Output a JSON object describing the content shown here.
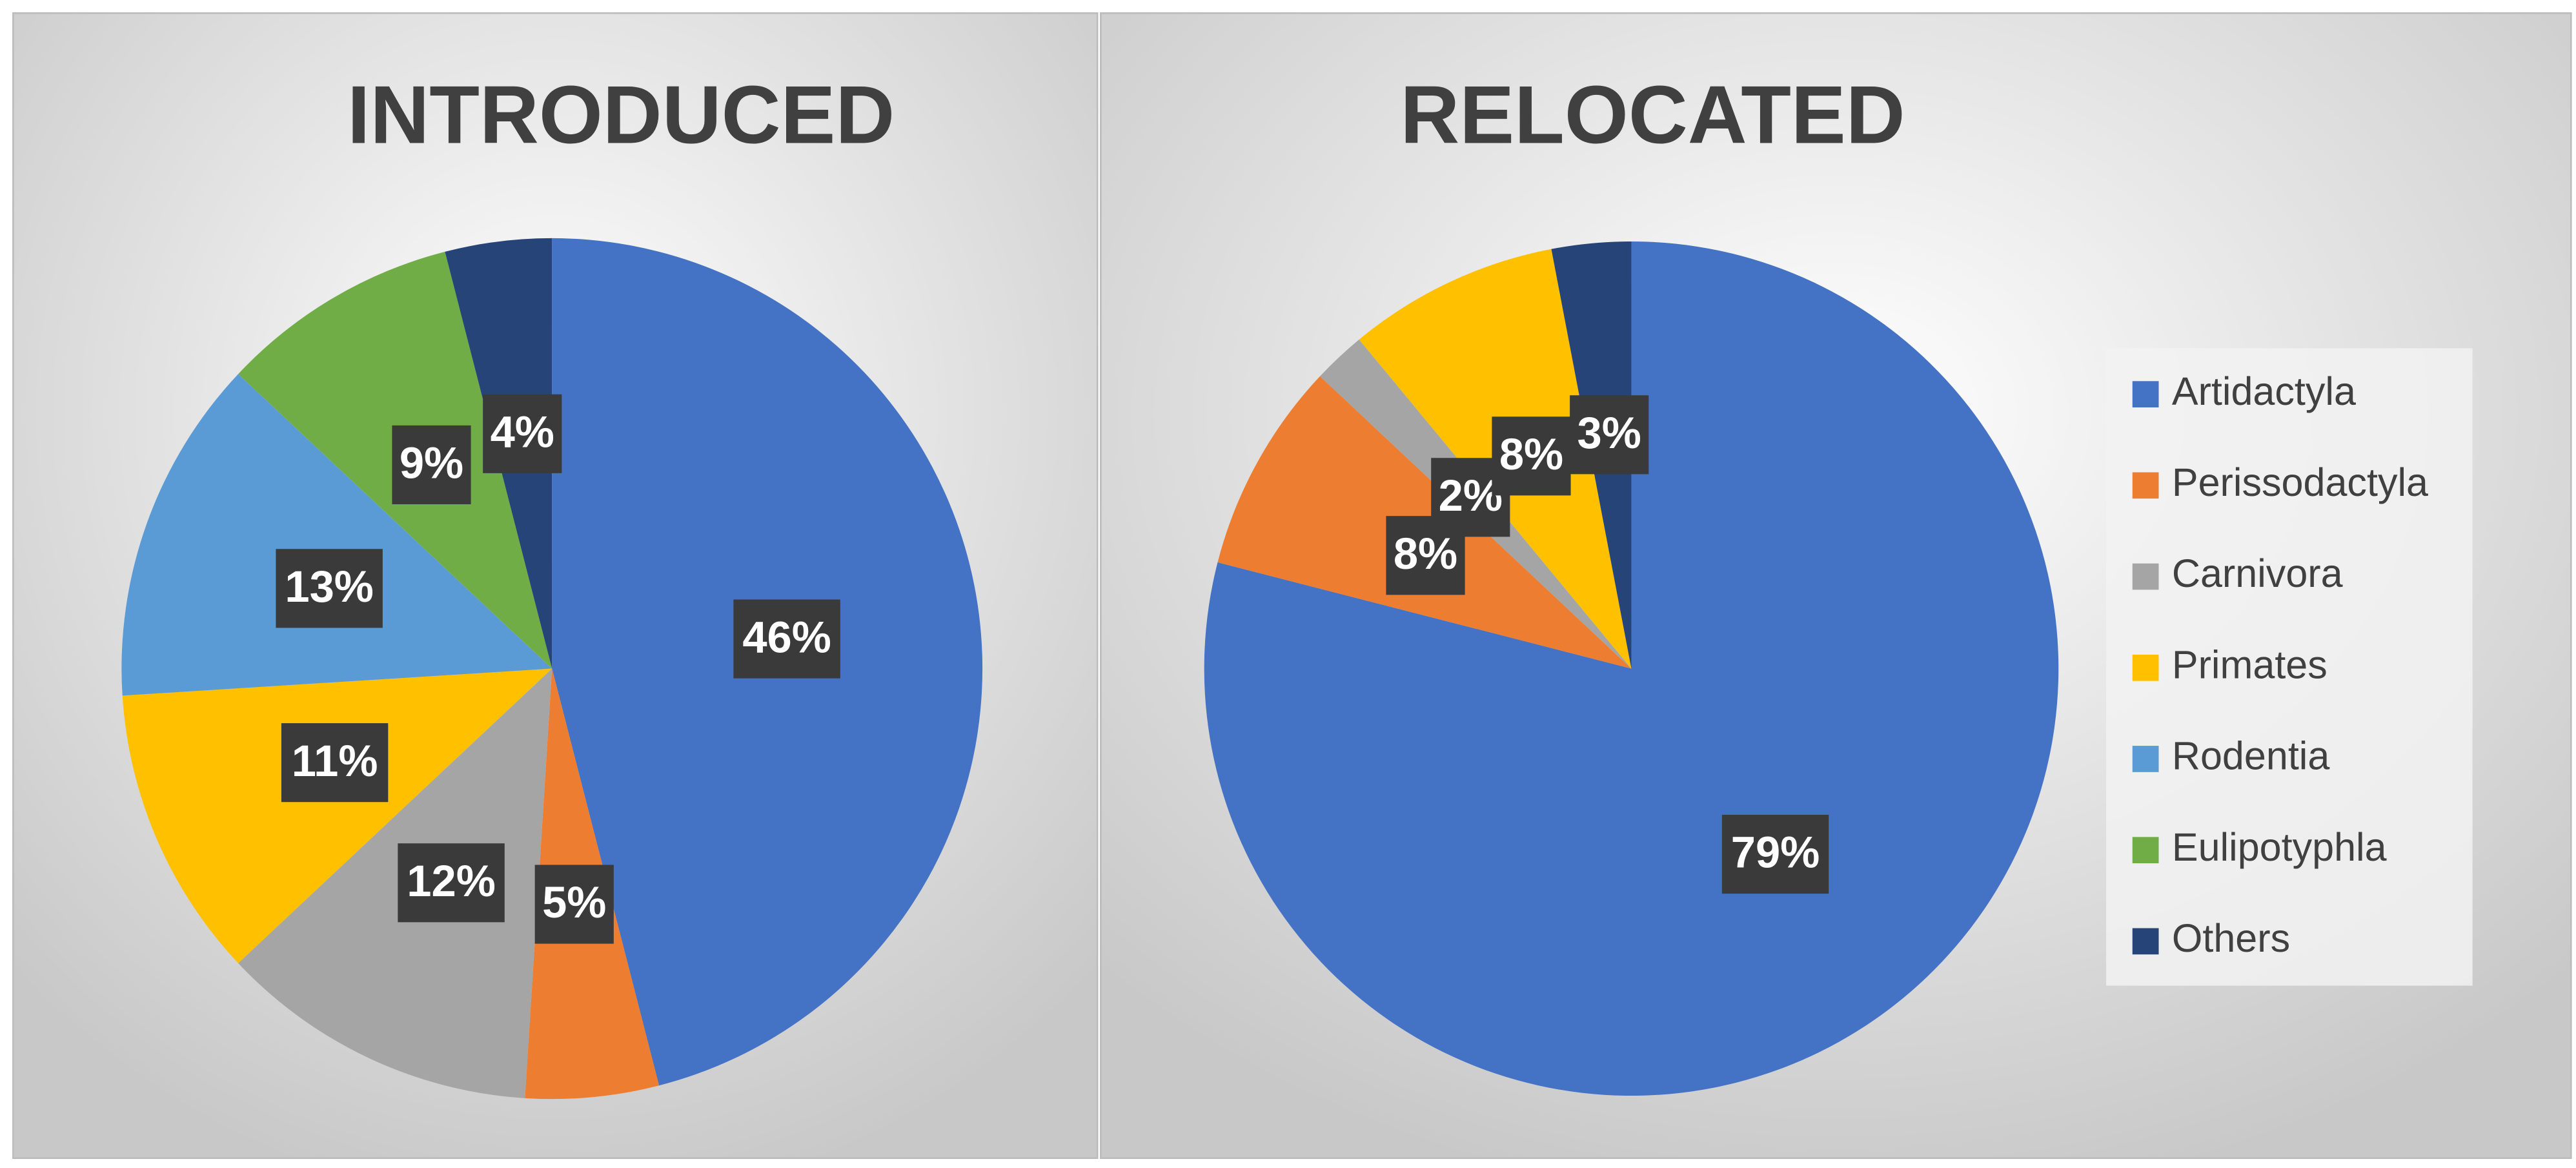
{
  "chart_data": [
    {
      "type": "pie",
      "title": "INTRODUCED",
      "categories": [
        "Artidactyla",
        "Perissodactyla",
        "Carnivora",
        "Primates",
        "Rodentia",
        "Eulipotyphla",
        "Others"
      ],
      "values": [
        46,
        5,
        12,
        11,
        13,
        9,
        4
      ],
      "value_labels": [
        "46%",
        "5%",
        "12%",
        "11%",
        "13%",
        "9%",
        "4%"
      ],
      "colors": [
        "#4472c4",
        "#ed7d31",
        "#a5a5a5",
        "#ffc000",
        "#5b9bd5",
        "#70ad47",
        "#264478"
      ]
    },
    {
      "type": "pie",
      "title": "RELOCATED",
      "categories": [
        "Artidactyla",
        "Perissodactyla",
        "Carnivora",
        "Primates",
        "Rodentia",
        "Eulipotyphla",
        "Others"
      ],
      "values": [
        79,
        8,
        2,
        8,
        0,
        0,
        3
      ],
      "value_labels": [
        "79%",
        "8%",
        "2%",
        "8%",
        null,
        null,
        "3%"
      ],
      "colors": [
        "#4472c4",
        "#ed7d31",
        "#a5a5a5",
        "#ffc000",
        "#5b9bd5",
        "#70ad47",
        "#264478"
      ],
      "legend": "right"
    }
  ]
}
